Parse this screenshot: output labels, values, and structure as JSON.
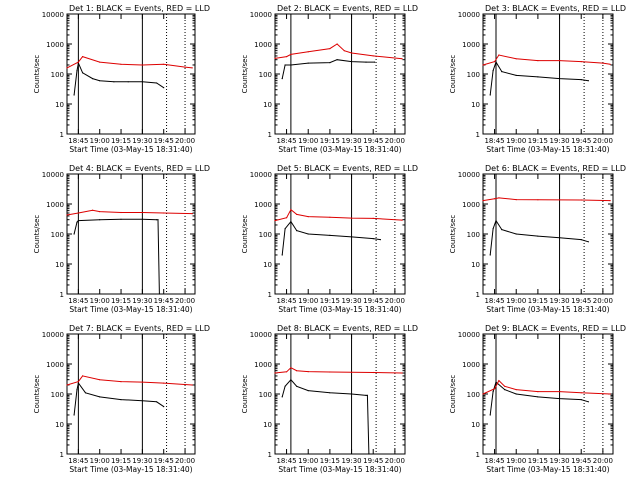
{
  "colors": {
    "events": "#000000",
    "lld": "#dd0000",
    "axes": "#000000"
  },
  "chart_data": [
    {
      "type": "line",
      "title": "Det 1: BLACK = Events, RED = LLD",
      "xlabel": "Start Time (03-May-15 18:31:40)",
      "ylabel": "Counts/sec",
      "yscale": "log",
      "ylim": [
        1,
        10000
      ],
      "xlim": [
        "18:37",
        "20:07"
      ],
      "xticks": [
        "18:45",
        "19:00",
        "19:15",
        "19:30",
        "19:45",
        "20:00"
      ],
      "yticks": [
        "1",
        "10",
        "100",
        "1000",
        "10000"
      ],
      "markers": {
        "solid": [
          "18:45",
          "19:30"
        ],
        "dotted": [
          "19:47",
          "20:00"
        ]
      },
      "series": [
        {
          "name": "Events",
          "x": [
            "18:42",
            "18:44",
            "18:45",
            "18:48",
            "18:55",
            "19:00",
            "19:10",
            "19:20",
            "19:30",
            "19:40",
            "19:45"
          ],
          "values": [
            20,
            130,
            230,
            110,
            70,
            60,
            55,
            55,
            55,
            50,
            35
          ]
        },
        {
          "name": "LLD",
          "x": [
            "18:37",
            "18:45",
            "18:48",
            "19:00",
            "19:15",
            "19:30",
            "19:45",
            "20:00",
            "20:05"
          ],
          "values": [
            160,
            250,
            380,
            250,
            210,
            200,
            210,
            170,
            160
          ]
        }
      ]
    },
    {
      "type": "line",
      "title": "Det 2: BLACK = Events, RED = LLD",
      "xlabel": "Start Time (03-May-15 18:31:40)",
      "ylabel": "Counts/sec",
      "yscale": "log",
      "ylim": [
        1,
        10000
      ],
      "xlim": [
        "18:37",
        "20:07"
      ],
      "xticks": [
        "18:45",
        "19:00",
        "19:15",
        "19:30",
        "19:45",
        "20:00"
      ],
      "yticks": [
        "1",
        "10",
        "100",
        "1000",
        "10000"
      ],
      "markers": {
        "solid": [
          "18:48",
          "19:30"
        ],
        "dotted": [
          "19:47",
          "20:00"
        ]
      },
      "series": [
        {
          "name": "Events",
          "x": [
            "18:42",
            "18:44",
            "18:48",
            "19:00",
            "19:15",
            "19:20",
            "19:30",
            "19:40",
            "19:46"
          ],
          "values": [
            70,
            200,
            200,
            230,
            240,
            300,
            260,
            250,
            250
          ]
        },
        {
          "name": "LLD",
          "x": [
            "18:37",
            "18:45",
            "18:48",
            "19:00",
            "19:15",
            "19:20",
            "19:25",
            "19:30",
            "19:45",
            "20:05"
          ],
          "values": [
            330,
            380,
            450,
            550,
            700,
            1000,
            600,
            500,
            400,
            320
          ]
        }
      ]
    },
    {
      "type": "line",
      "title": "Det 3: BLACK = Events, RED = LLD",
      "xlabel": "Start Time (03-May-15 18:31:40)",
      "ylabel": "Counts/sec",
      "yscale": "log",
      "ylim": [
        1,
        10000
      ],
      "xlim": [
        "18:37",
        "20:07"
      ],
      "xticks": [
        "18:45",
        "19:00",
        "19:15",
        "19:30",
        "19:45",
        "20:00"
      ],
      "yticks": [
        "1",
        "10",
        "100",
        "1000",
        "10000"
      ],
      "markers": {
        "solid": [
          "18:46",
          "19:30"
        ],
        "dotted": [
          "19:47",
          "20:00"
        ]
      },
      "series": [
        {
          "name": "Events",
          "x": [
            "18:42",
            "18:44",
            "18:46",
            "18:50",
            "19:00",
            "19:15",
            "19:30",
            "19:45",
            "19:50"
          ],
          "values": [
            20,
            130,
            250,
            120,
            90,
            80,
            70,
            65,
            60
          ]
        },
        {
          "name": "LLD",
          "x": [
            "18:37",
            "18:45",
            "18:48",
            "19:00",
            "19:15",
            "19:30",
            "19:45",
            "20:00",
            "20:05"
          ],
          "values": [
            200,
            260,
            430,
            320,
            280,
            280,
            260,
            230,
            210
          ]
        }
      ]
    },
    {
      "type": "line",
      "title": "Det 4: BLACK = Events, RED = LLD",
      "xlabel": "Start Time (03-May-15 18:31:40)",
      "ylabel": "Counts/sec",
      "yscale": "log",
      "ylim": [
        1,
        10000
      ],
      "xlim": [
        "18:37",
        "20:07"
      ],
      "xticks": [
        "18:45",
        "19:00",
        "19:15",
        "19:30",
        "19:45",
        "20:00"
      ],
      "yticks": [
        "1",
        "10",
        "100",
        "1000",
        "10000"
      ],
      "markers": {
        "solid": [
          "18:45",
          "19:30"
        ],
        "dotted": [
          "19:47",
          "20:00"
        ]
      },
      "series": [
        {
          "name": "Events",
          "x": [
            "18:42",
            "18:44",
            "18:45",
            "19:00",
            "19:15",
            "19:30",
            "19:40",
            "19:41",
            "19:42"
          ],
          "values": [
            100,
            250,
            280,
            300,
            310,
            310,
            300,
            300,
            1
          ]
        },
        {
          "name": "LLD",
          "x": [
            "18:37",
            "18:45",
            "18:55",
            "19:00",
            "19:15",
            "19:30",
            "19:45",
            "20:05"
          ],
          "values": [
            430,
            500,
            620,
            560,
            520,
            520,
            500,
            480
          ]
        }
      ]
    },
    {
      "type": "line",
      "title": "Det 5: BLACK = Events, RED = LLD",
      "xlabel": "Start Time (03-May-15 18:31:40)",
      "ylabel": "Counts/sec",
      "yscale": "log",
      "ylim": [
        1,
        10000
      ],
      "xlim": [
        "18:37",
        "20:07"
      ],
      "xticks": [
        "18:45",
        "19:00",
        "19:15",
        "19:30",
        "19:45",
        "20:00"
      ],
      "yticks": [
        "1",
        "10",
        "100",
        "1000",
        "10000"
      ],
      "markers": {
        "solid": [
          "18:48",
          "19:30"
        ],
        "dotted": [
          "19:47",
          "20:00"
        ]
      },
      "series": [
        {
          "name": "Events",
          "x": [
            "18:42",
            "18:44",
            "18:48",
            "18:52",
            "19:00",
            "19:15",
            "19:30",
            "19:45",
            "19:50"
          ],
          "values": [
            20,
            150,
            260,
            130,
            100,
            90,
            80,
            70,
            65
          ]
        },
        {
          "name": "LLD",
          "x": [
            "18:37",
            "18:45",
            "18:48",
            "18:52",
            "19:00",
            "19:15",
            "19:30",
            "19:45",
            "20:05"
          ],
          "values": [
            280,
            350,
            650,
            450,
            380,
            360,
            340,
            330,
            290
          ]
        }
      ]
    },
    {
      "type": "line",
      "title": "Det 6: BLACK = Events, RED = LLD",
      "xlabel": "Start Time (03-May-15 18:31:40)",
      "ylabel": "Counts/sec",
      "yscale": "log",
      "ylim": [
        1,
        10000
      ],
      "xlim": [
        "18:37",
        "20:07"
      ],
      "xticks": [
        "18:45",
        "19:00",
        "19:15",
        "19:30",
        "19:45",
        "20:00"
      ],
      "yticks": [
        "1",
        "10",
        "100",
        "1000",
        "10000"
      ],
      "markers": {
        "solid": [
          "18:46",
          "19:30"
        ],
        "dotted": [
          "19:47",
          "20:00"
        ]
      },
      "series": [
        {
          "name": "Events",
          "x": [
            "18:42",
            "18:44",
            "18:46",
            "18:50",
            "19:00",
            "19:15",
            "19:30",
            "19:45",
            "19:50"
          ],
          "values": [
            20,
            150,
            280,
            140,
            100,
            85,
            75,
            65,
            55
          ]
        },
        {
          "name": "LLD",
          "x": [
            "18:37",
            "18:45",
            "18:48",
            "19:00",
            "19:15",
            "19:30",
            "19:45",
            "20:05"
          ],
          "values": [
            1300,
            1500,
            1600,
            1400,
            1380,
            1370,
            1360,
            1300
          ]
        }
      ]
    },
    {
      "type": "line",
      "title": "Det 7: BLACK = Events, RED = LLD",
      "xlabel": "Start Time (03-May-15 18:31:40)",
      "ylabel": "Counts/sec",
      "yscale": "log",
      "ylim": [
        1,
        10000
      ],
      "xlim": [
        "18:37",
        "20:07"
      ],
      "xticks": [
        "18:45",
        "19:00",
        "19:15",
        "19:30",
        "19:45",
        "20:00"
      ],
      "yticks": [
        "1",
        "10",
        "100",
        "1000",
        "10000"
      ],
      "markers": {
        "solid": [
          "18:45",
          "19:30"
        ],
        "dotted": [
          "19:47",
          "20:00"
        ]
      },
      "series": [
        {
          "name": "Events",
          "x": [
            "18:42",
            "18:44",
            "18:45",
            "18:50",
            "19:00",
            "19:15",
            "19:30",
            "19:40",
            "19:45"
          ],
          "values": [
            20,
            140,
            230,
            110,
            80,
            65,
            60,
            55,
            38
          ]
        },
        {
          "name": "LLD",
          "x": [
            "18:37",
            "18:45",
            "18:48",
            "19:00",
            "19:15",
            "19:30",
            "19:45",
            "20:05"
          ],
          "values": [
            200,
            260,
            400,
            300,
            260,
            250,
            230,
            200
          ]
        }
      ]
    },
    {
      "type": "line",
      "title": "Det 8: BLACK = Events, RED = LLD",
      "xlabel": "Start Time (03-May-15 18:31:40)",
      "ylabel": "Counts/sec",
      "yscale": "log",
      "ylim": [
        1,
        10000
      ],
      "xlim": [
        "18:37",
        "20:07"
      ],
      "xticks": [
        "18:45",
        "19:00",
        "19:15",
        "19:30",
        "19:45",
        "20:00"
      ],
      "yticks": [
        "1",
        "10",
        "100",
        "1000",
        "10000"
      ],
      "markers": {
        "solid": [
          "18:48",
          "19:30"
        ],
        "dotted": [
          "19:47",
          "20:00"
        ]
      },
      "series": [
        {
          "name": "Events",
          "x": [
            "18:42",
            "18:44",
            "18:48",
            "18:52",
            "19:00",
            "19:15",
            "19:30",
            "19:40",
            "19:41",
            "19:42"
          ],
          "values": [
            80,
            180,
            300,
            180,
            130,
            110,
            100,
            90,
            90,
            1
          ]
        },
        {
          "name": "LLD",
          "x": [
            "18:37",
            "18:45",
            "18:48",
            "18:52",
            "19:00",
            "19:15",
            "19:30",
            "19:45",
            "20:05"
          ],
          "values": [
            500,
            550,
            750,
            600,
            560,
            540,
            530,
            520,
            500
          ]
        }
      ]
    },
    {
      "type": "line",
      "title": "Det 9: BLACK = Events, RED = LLD",
      "xlabel": "Start Time (03-May-15 18:31:40)",
      "ylabel": "Counts/sec",
      "yscale": "log",
      "ylim": [
        1,
        10000
      ],
      "xlim": [
        "18:37",
        "20:07"
      ],
      "xticks": [
        "18:45",
        "19:00",
        "19:15",
        "19:30",
        "19:45",
        "20:00"
      ],
      "yticks": [
        "1",
        "10",
        "100",
        "1000",
        "10000"
      ],
      "markers": {
        "solid": [
          "18:46",
          "19:30"
        ],
        "dotted": [
          "19:47",
          "20:00"
        ]
      },
      "series": [
        {
          "name": "Events",
          "x": [
            "18:42",
            "18:44",
            "18:46",
            "18:52",
            "19:00",
            "19:15",
            "19:30",
            "19:45",
            "19:50"
          ],
          "values": [
            20,
            120,
            250,
            140,
            100,
            80,
            70,
            65,
            55
          ]
        },
        {
          "name": "LLD",
          "x": [
            "18:37",
            "18:45",
            "18:48",
            "18:52",
            "19:00",
            "19:15",
            "19:30",
            "19:45",
            "20:05"
          ],
          "values": [
            100,
            150,
            280,
            180,
            140,
            120,
            120,
            110,
            100
          ]
        }
      ]
    }
  ]
}
